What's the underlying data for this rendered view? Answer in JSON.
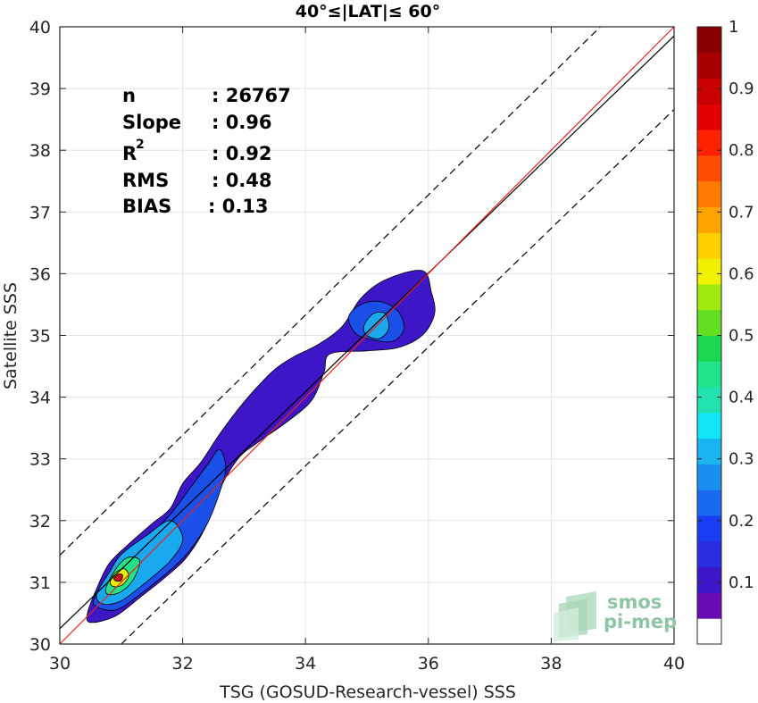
{
  "chart_data": {
    "type": "scatter",
    "title": "40°≤|LAT|≤ 60°",
    "xlabel": "TSG (GOSUD-Research-vessel) SSS",
    "ylabel": "Satellite SSS",
    "xlim": [
      30,
      40
    ],
    "ylim": [
      30,
      40
    ],
    "xticks": [
      "30",
      "32",
      "34",
      "36",
      "38",
      "40"
    ],
    "yticks": [
      "30",
      "31",
      "32",
      "33",
      "34",
      "35",
      "36",
      "37",
      "38",
      "39",
      "40"
    ],
    "grid": true,
    "stats": {
      "n_label": "n",
      "n_value": ": 26767",
      "slope_label": "Slope",
      "slope_value": ": 0.96",
      "r2_label": "R",
      "r2_sup": "2",
      "r2_value": ": 0.92",
      "rms_label": "RMS",
      "rms_value": ": 0.48",
      "bias_label": "BIAS",
      "bias_value": ": 0.13"
    },
    "lines": {
      "one_to_one": {
        "color": "#e8231c",
        "points": [
          [
            30,
            30
          ],
          [
            40,
            40
          ]
        ]
      },
      "regression": {
        "color": "#000000",
        "points": [
          [
            30,
            30.25
          ],
          [
            40,
            39.85
          ]
        ]
      },
      "upper_bound": {
        "color": "#000000",
        "dashed": true,
        "points": [
          [
            30,
            31.44
          ],
          [
            38.8,
            40
          ]
        ]
      },
      "lower_bound": {
        "color": "#000000",
        "dashed": true,
        "points": [
          [
            31,
            30
          ],
          [
            40,
            38.66
          ]
        ]
      }
    },
    "density_contours": [
      {
        "level": 0.02,
        "color": "#3d17c7",
        "points": [
          [
            30.45,
            30.5
          ],
          [
            30.6,
            30.9
          ],
          [
            30.8,
            31.3
          ],
          [
            31.1,
            31.6
          ],
          [
            31.5,
            31.95
          ],
          [
            31.8,
            32.2
          ],
          [
            32.0,
            32.6
          ],
          [
            32.3,
            32.95
          ],
          [
            32.6,
            33.4
          ],
          [
            32.9,
            33.8
          ],
          [
            33.2,
            34.15
          ],
          [
            33.5,
            34.45
          ],
          [
            33.8,
            34.65
          ],
          [
            34.2,
            34.85
          ],
          [
            34.6,
            35.15
          ],
          [
            34.9,
            35.6
          ],
          [
            35.3,
            35.9
          ],
          [
            35.9,
            36.05
          ],
          [
            36.05,
            35.7
          ],
          [
            36.1,
            35.35
          ],
          [
            35.9,
            35.0
          ],
          [
            35.5,
            34.8
          ],
          [
            35.0,
            34.75
          ],
          [
            34.4,
            34.7
          ],
          [
            34.3,
            34.4
          ],
          [
            34.1,
            33.95
          ],
          [
            33.7,
            33.6
          ],
          [
            33.2,
            33.25
          ],
          [
            32.9,
            33.0
          ],
          [
            32.6,
            32.5
          ],
          [
            32.4,
            31.95
          ],
          [
            32.1,
            31.45
          ],
          [
            31.8,
            31.15
          ],
          [
            31.3,
            30.75
          ],
          [
            30.9,
            30.45
          ],
          [
            30.5,
            30.35
          ]
        ]
      },
      {
        "level": 0.1,
        "color": "#1a4fe8",
        "points": [
          [
            30.55,
            30.65
          ],
          [
            30.7,
            30.95
          ],
          [
            30.9,
            31.3
          ],
          [
            31.2,
            31.55
          ],
          [
            31.5,
            31.8
          ],
          [
            31.8,
            32.1
          ],
          [
            32.1,
            32.5
          ],
          [
            32.4,
            32.9
          ],
          [
            32.6,
            33.15
          ],
          [
            32.7,
            32.85
          ],
          [
            32.6,
            32.45
          ],
          [
            32.4,
            31.95
          ],
          [
            32.1,
            31.5
          ],
          [
            31.8,
            31.2
          ],
          [
            31.3,
            30.8
          ],
          [
            30.9,
            30.55
          ]
        ]
      },
      {
        "level": 0.1,
        "color": "#1a4fe8",
        "points": [
          [
            34.7,
            35.3
          ],
          [
            34.9,
            35.5
          ],
          [
            35.2,
            35.55
          ],
          [
            35.5,
            35.4
          ],
          [
            35.6,
            35.1
          ],
          [
            35.4,
            34.9
          ],
          [
            35.0,
            34.95
          ],
          [
            34.8,
            35.05
          ]
        ]
      },
      {
        "level": 0.25,
        "color": "#1aa8ee",
        "points": [
          [
            30.6,
            30.8
          ],
          [
            30.8,
            31.15
          ],
          [
            31.0,
            31.45
          ],
          [
            31.4,
            31.75
          ],
          [
            31.8,
            32.0
          ],
          [
            32.0,
            31.7
          ],
          [
            31.8,
            31.35
          ],
          [
            31.4,
            31.0
          ],
          [
            31.0,
            30.7
          ],
          [
            30.7,
            30.65
          ]
        ]
      },
      {
        "level": 0.25,
        "color": "#1aa8ee",
        "points": [
          [
            34.95,
            35.15
          ],
          [
            35.1,
            35.35
          ],
          [
            35.3,
            35.35
          ],
          [
            35.35,
            35.1
          ],
          [
            35.2,
            34.95
          ],
          [
            35.0,
            35.0
          ]
        ]
      },
      {
        "level": 0.4,
        "color": "#22e38a",
        "points": [
          [
            30.75,
            30.9
          ],
          [
            30.9,
            31.2
          ],
          [
            31.1,
            31.4
          ],
          [
            31.3,
            31.35
          ],
          [
            31.2,
            31.05
          ],
          [
            31.0,
            30.85
          ],
          [
            30.8,
            30.8
          ]
        ]
      },
      {
        "level": 0.6,
        "color": "#e8f000",
        "points": [
          [
            30.82,
            31.0
          ],
          [
            30.9,
            31.15
          ],
          [
            31.05,
            31.22
          ],
          [
            31.12,
            31.1
          ],
          [
            31.02,
            30.96
          ],
          [
            30.88,
            30.93
          ]
        ]
      },
      {
        "level": 0.9,
        "color": "#c41010",
        "points": [
          [
            30.88,
            31.06
          ],
          [
            30.95,
            31.13
          ],
          [
            31.02,
            31.12
          ],
          [
            31.0,
            31.03
          ],
          [
            30.92,
            31.02
          ]
        ]
      }
    ],
    "colorbar": {
      "ticks": [
        "0.1",
        "0.2",
        "0.3",
        "0.4",
        "0.5",
        "0.6",
        "0.7",
        "0.8",
        "0.9",
        "1"
      ],
      "colors": [
        "#ffffff",
        "#6a0bb5",
        "#3d17c7",
        "#2a2ee0",
        "#1a3cf2",
        "#1a6af0",
        "#1a8ff0",
        "#1ab4f0",
        "#12e6f5",
        "#22e3b0",
        "#22e38a",
        "#1ad650",
        "#60e020",
        "#a0ea10",
        "#f0f000",
        "#ffd000",
        "#ffa300",
        "#ff7a00",
        "#ff4e00",
        "#ff2200",
        "#e50000",
        "#c80000",
        "#a80000",
        "#8a0000"
      ]
    },
    "logo": {
      "line1": "smos",
      "line2": "pi-mep"
    }
  }
}
